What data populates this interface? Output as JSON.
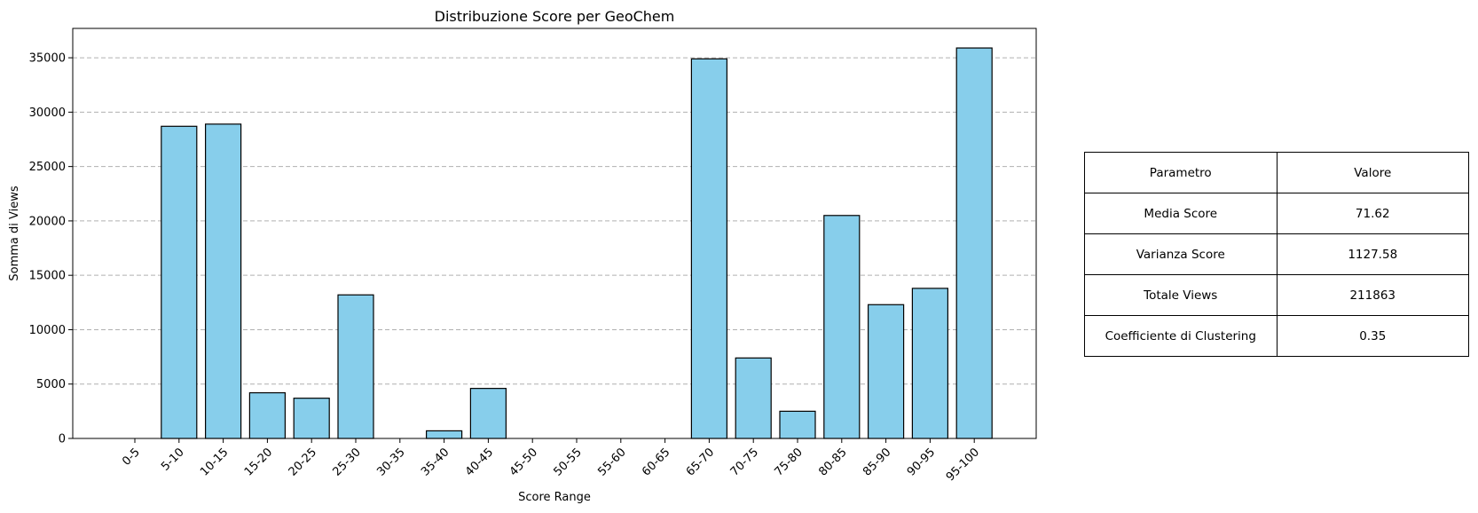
{
  "chart_data": {
    "type": "bar",
    "title": "Distribuzione Score per GeoChem",
    "xlabel": "Score Range",
    "ylabel": "Somma di Views",
    "categories": [
      "0-5",
      "5-10",
      "10-15",
      "15-20",
      "20-25",
      "25-30",
      "30-35",
      "35-40",
      "40-45",
      "45-50",
      "50-55",
      "55-60",
      "60-65",
      "65-70",
      "70-75",
      "75-80",
      "80-85",
      "85-90",
      "90-95",
      "95-100"
    ],
    "values": [
      0,
      28700,
      28900,
      4200,
      3700,
      13200,
      0,
      700,
      4600,
      0,
      0,
      0,
      0,
      34900,
      7400,
      2500,
      20500,
      12300,
      13800,
      35900
    ],
    "ylim": [
      0,
      37700
    ],
    "yticks": [
      0,
      5000,
      10000,
      15000,
      20000,
      25000,
      30000,
      35000
    ],
    "grid": "y-dashed",
    "bar_color": "#87CEEB",
    "edge_color": "#000000"
  },
  "table": {
    "header": [
      "Parametro",
      "Valore"
    ],
    "rows": [
      [
        "Media Score",
        "71.62"
      ],
      [
        "Varianza Score",
        "1127.58"
      ],
      [
        "Totale Views",
        "211863"
      ],
      [
        "Coefficiente di Clustering",
        "0.35"
      ]
    ]
  }
}
